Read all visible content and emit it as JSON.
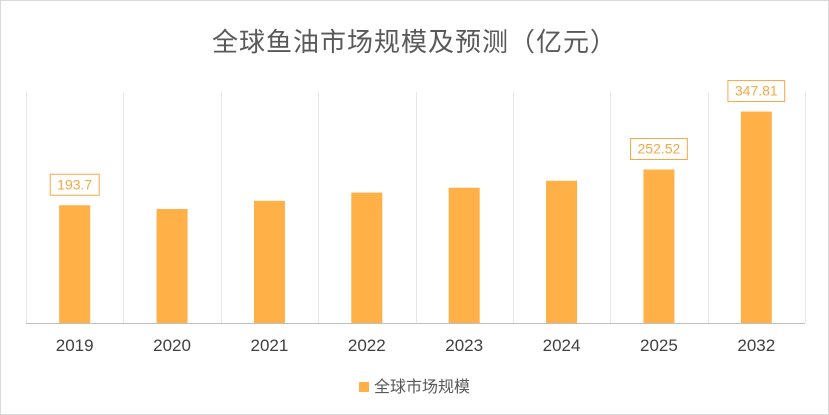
{
  "chart_data": {
    "type": "bar",
    "title": "全球鱼油市场规模及预测（亿元）",
    "categories": [
      "2019",
      "2020",
      "2021",
      "2022",
      "2023",
      "2024",
      "2025",
      "2032"
    ],
    "series": [
      {
        "name": "全球市场规模",
        "values": [
          193.7,
          187.5,
          201.0,
          214.5,
          222.5,
          234.0,
          252.52,
          347.81
        ],
        "color": "#ffb046"
      }
    ],
    "data_labels": [
      {
        "index": 0,
        "text": "193.7"
      },
      {
        "index": 6,
        "text": "252.52"
      },
      {
        "index": 7,
        "text": "347.81"
      }
    ],
    "ylim": [
      0,
      380
    ],
    "grid": "vertical",
    "legend_position": "bottom"
  }
}
